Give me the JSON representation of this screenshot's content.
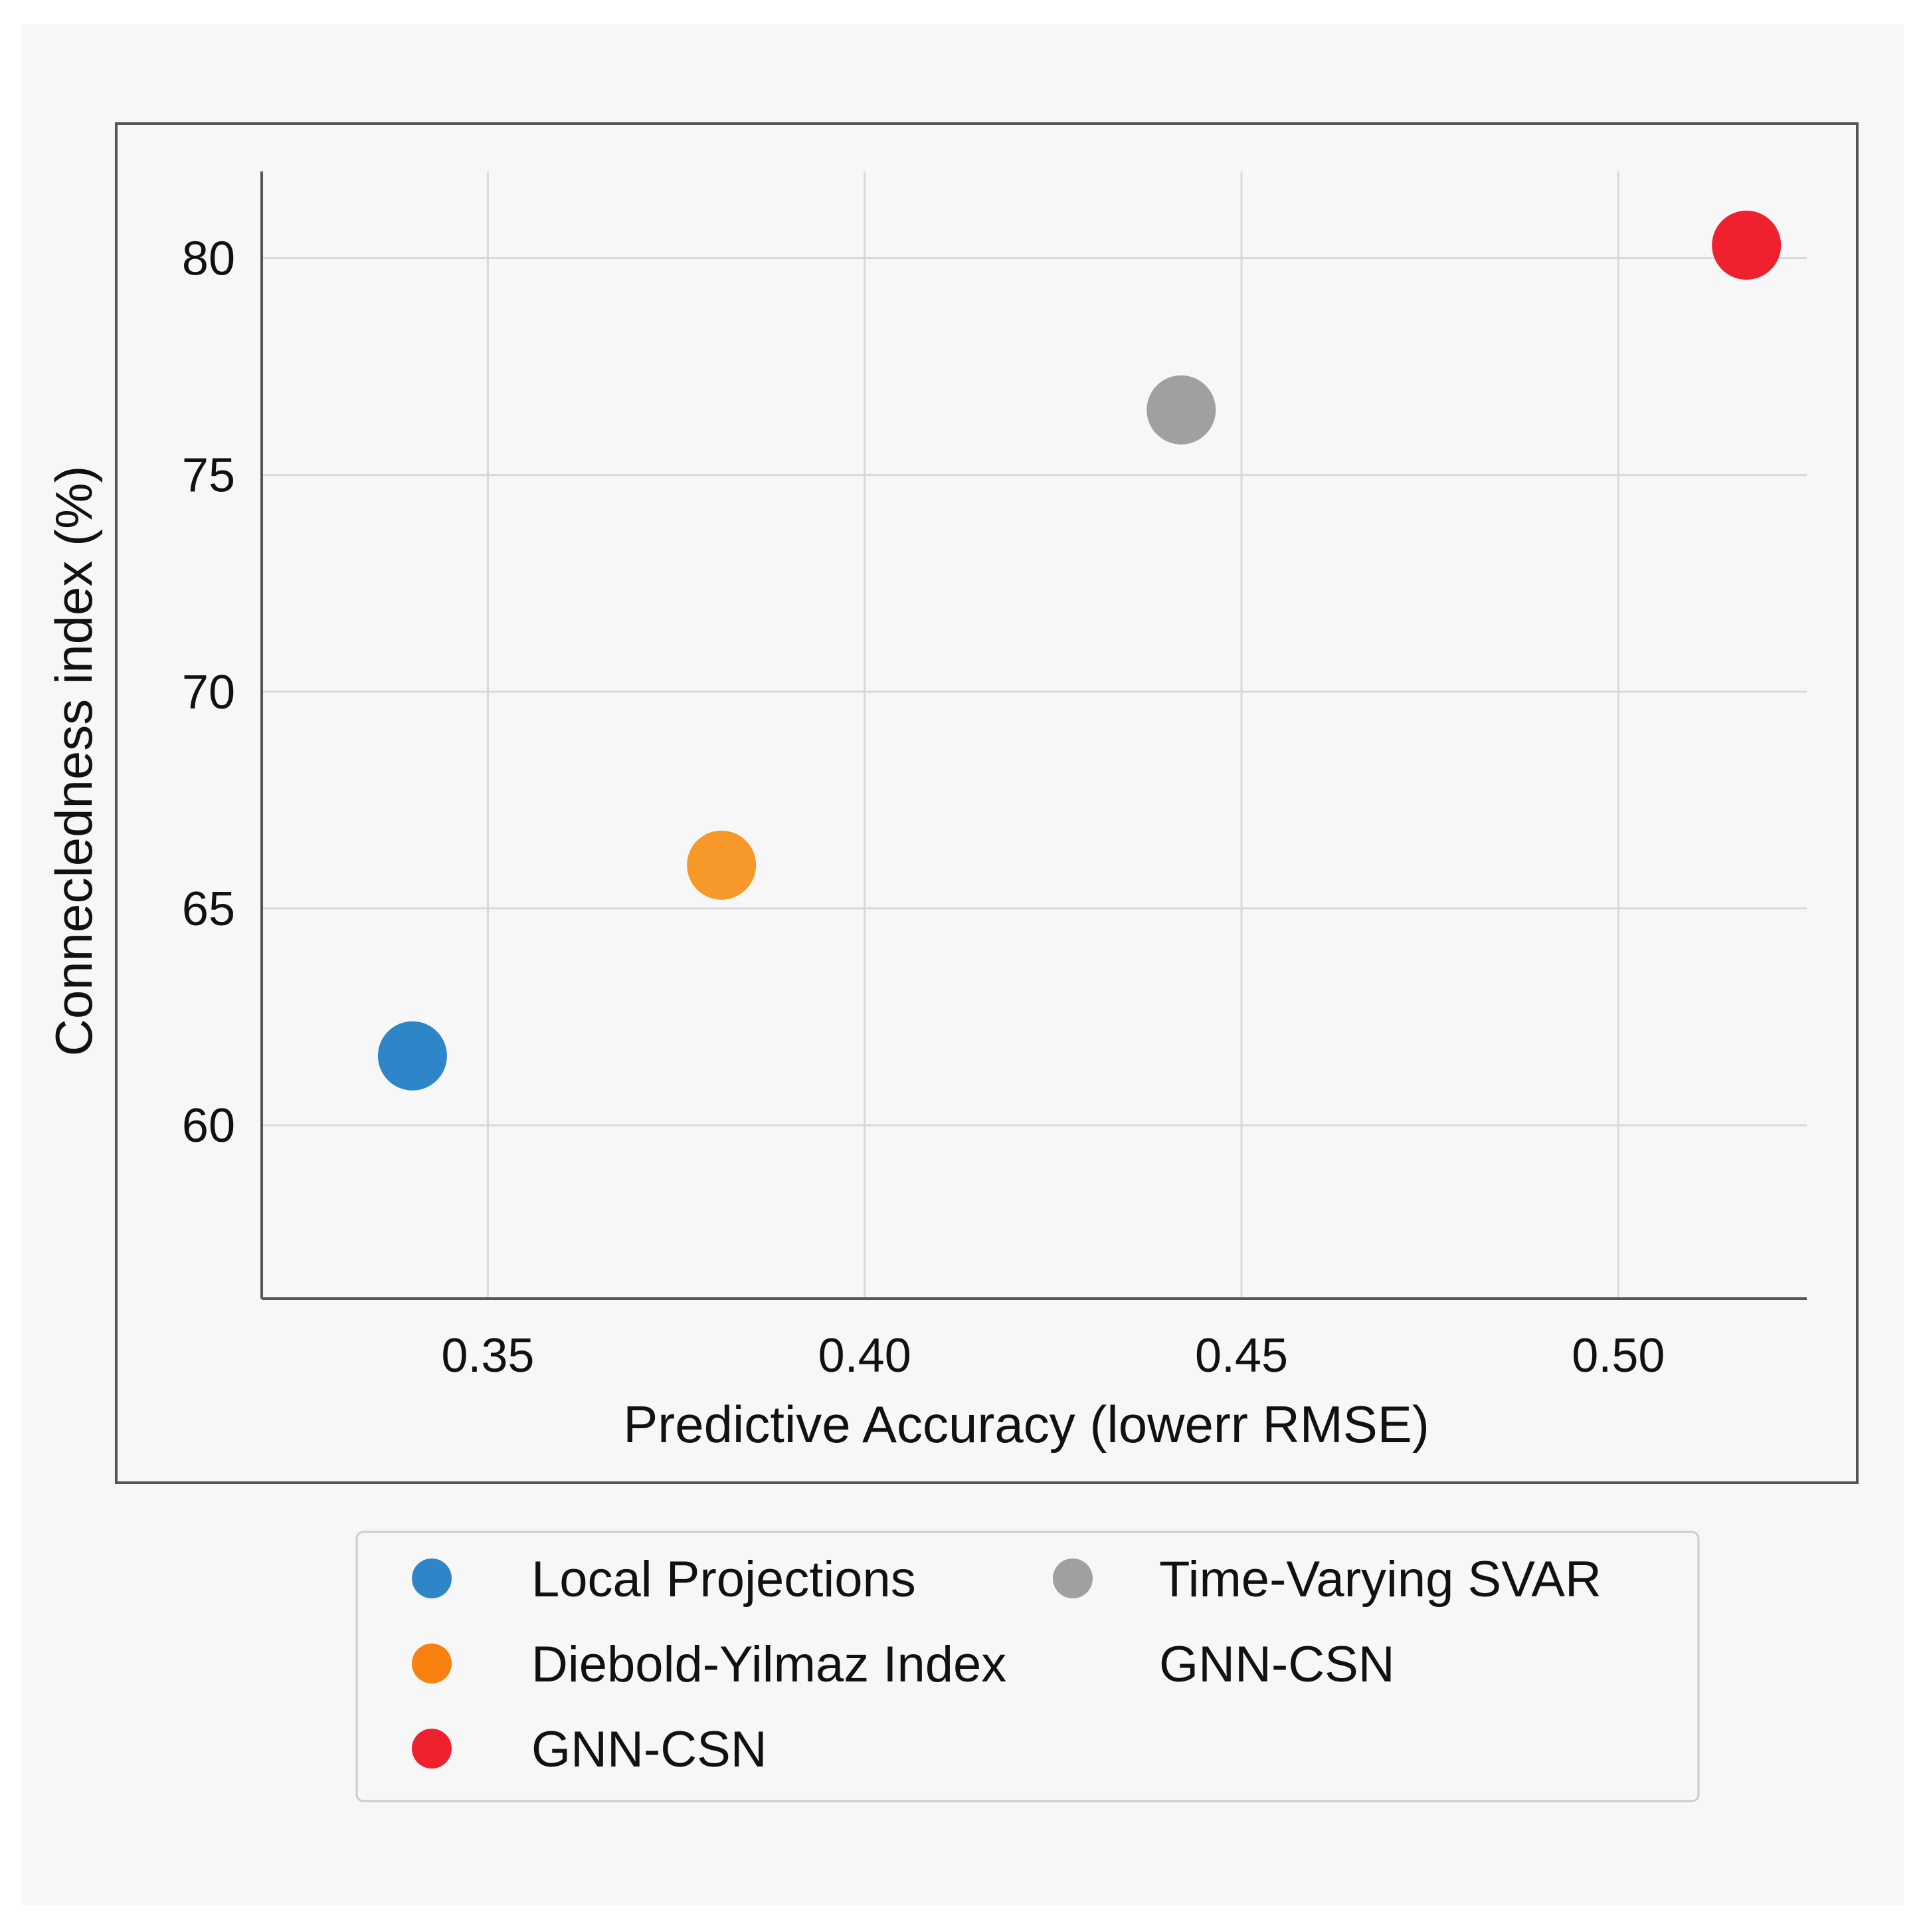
{
  "colors": {
    "background": "#f7f7f7",
    "frame": "#555555",
    "grid": "#d9d9d9",
    "axis": "#555555",
    "text": "#111111",
    "legend_border": "#cccccc"
  },
  "chart_data": {
    "type": "scatter",
    "title": "",
    "xlabel": "Predictive Accuracy (lowerr RMSE)",
    "ylabel": "Connecledness index (%)",
    "xlim": [
      0.32,
      0.525
    ],
    "ylim": [
      56,
      82
    ],
    "xticks": [
      0.35,
      0.4,
      0.45,
      0.5
    ],
    "xtick_labels": [
      "0.35",
      "0.40",
      "0.45",
      "0.50"
    ],
    "yticks": [
      60,
      65,
      70,
      75,
      80
    ],
    "ytick_labels": [
      "60",
      "65",
      "70",
      "75",
      "80"
    ],
    "grid": true,
    "legend_position": "bottom-outside",
    "points": [
      {
        "series": "Local Projections",
        "x": 0.34,
        "y": 61.6,
        "color": "#2e86c8"
      },
      {
        "series": "Diebold-Yilmaz Index",
        "x": 0.381,
        "y": 66.0,
        "color": "#f7982a"
      },
      {
        "series": "Time-Varying SVAR",
        "x": 0.442,
        "y": 76.5,
        "color": "#a0a0a0"
      },
      {
        "series": "GNN-CSN",
        "x": 0.517,
        "y": 80.3,
        "color": "#f0212f"
      }
    ],
    "legend": [
      {
        "label": "Local Projections",
        "color": "#2e86c8",
        "marker": true
      },
      {
        "label": "Diebold-Yilmaz Index",
        "color": "#f7820f",
        "marker": true
      },
      {
        "label": "GNN-CSN",
        "color": "#f0212f",
        "marker": true
      },
      {
        "label": "Time-Varying SVAR",
        "color": "#a0a0a0",
        "marker": true
      },
      {
        "label": "GNN-CSN",
        "color": "",
        "marker": false
      }
    ]
  }
}
